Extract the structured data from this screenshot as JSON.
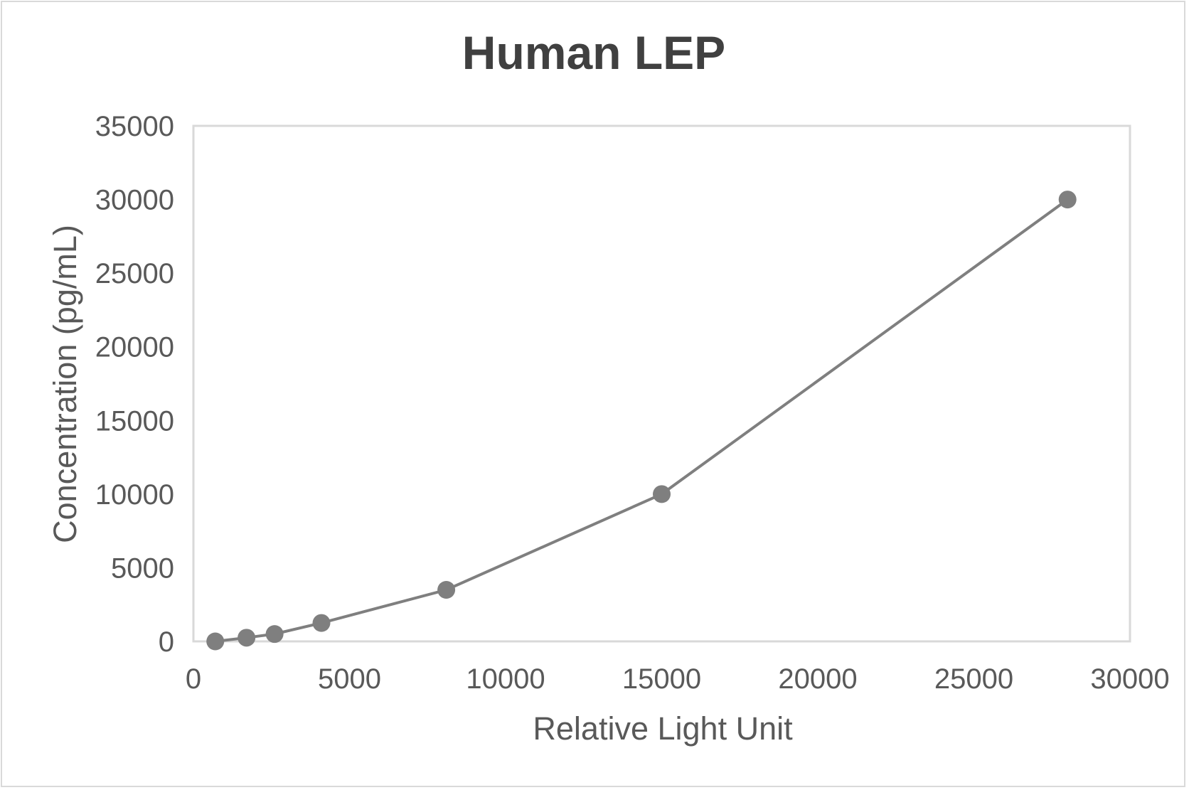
{
  "chart_data": {
    "type": "scatter",
    "mode": "lines+markers",
    "title": "Human LEP",
    "xlabel": "Relative Light Unit",
    "ylabel": "Concentration (pg/mL)",
    "xlim": [
      0,
      30000
    ],
    "ylim": [
      0,
      35000
    ],
    "xticks": [
      0,
      5000,
      10000,
      15000,
      20000,
      25000,
      30000
    ],
    "yticks": [
      0,
      5000,
      10000,
      15000,
      20000,
      25000,
      30000,
      35000
    ],
    "grid": false,
    "legend": null,
    "series": [
      {
        "name": "Human LEP",
        "color": "#7f7f7f",
        "x": [
          700,
          1700,
          2600,
          4100,
          8100,
          15000,
          28000
        ],
        "y": [
          0,
          250,
          500,
          1250,
          3500,
          10000,
          30000
        ]
      }
    ]
  },
  "colors": {
    "line": "#7f7f7f",
    "marker": "#7f7f7f",
    "axis_border": "#d9d9d9",
    "text": "#595959",
    "title": "#404040"
  }
}
